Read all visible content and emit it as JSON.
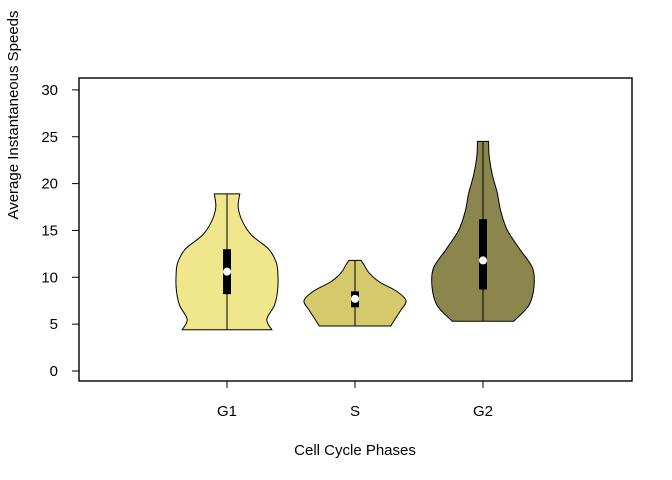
{
  "chart_data": {
    "type": "violin",
    "title": "",
    "xlabel": "Cell Cycle Phases",
    "ylabel": "Average Instantaneous Speeds",
    "ylim": [
      -1,
      31
    ],
    "yticks": [
      0,
      5,
      10,
      15,
      20,
      25,
      30
    ],
    "categories": [
      "G1",
      "S",
      "G2"
    ],
    "series": [
      {
        "name": "G1",
        "color": "#F0E68C",
        "min": 4.4,
        "q1": 8.2,
        "median": 10.6,
        "q3": 13.0,
        "max": 18.9,
        "density": [
          [
            4.4,
            0.88
          ],
          [
            5.5,
            0.78
          ],
          [
            7.0,
            0.93
          ],
          [
            8.5,
            0.99
          ],
          [
            10.0,
            1.0
          ],
          [
            11.5,
            0.97
          ],
          [
            13.0,
            0.82
          ],
          [
            14.5,
            0.48
          ],
          [
            16.0,
            0.3
          ],
          [
            17.5,
            0.22
          ],
          [
            18.9,
            0.25
          ]
        ]
      },
      {
        "name": "S",
        "color": "#D4C96B",
        "min": 4.8,
        "q1": 6.8,
        "median": 7.7,
        "q3": 8.5,
        "max": 11.8,
        "density": [
          [
            4.8,
            0.7
          ],
          [
            5.5,
            0.78
          ],
          [
            6.5,
            0.9
          ],
          [
            7.5,
            1.0
          ],
          [
            8.5,
            0.82
          ],
          [
            9.5,
            0.48
          ],
          [
            10.5,
            0.27
          ],
          [
            11.3,
            0.18
          ],
          [
            11.8,
            0.12
          ]
        ]
      },
      {
        "name": "G2",
        "color": "#8B864E",
        "min": 5.3,
        "q1": 8.7,
        "median": 11.8,
        "q3": 16.2,
        "max": 24.5,
        "density": [
          [
            5.3,
            0.6
          ],
          [
            7.0,
            0.9
          ],
          [
            9.0,
            1.0
          ],
          [
            11.0,
            0.97
          ],
          [
            13.0,
            0.72
          ],
          [
            15.0,
            0.48
          ],
          [
            17.0,
            0.35
          ],
          [
            19.0,
            0.28
          ],
          [
            21.0,
            0.18
          ],
          [
            23.0,
            0.12
          ],
          [
            24.5,
            0.11
          ]
        ]
      }
    ]
  }
}
